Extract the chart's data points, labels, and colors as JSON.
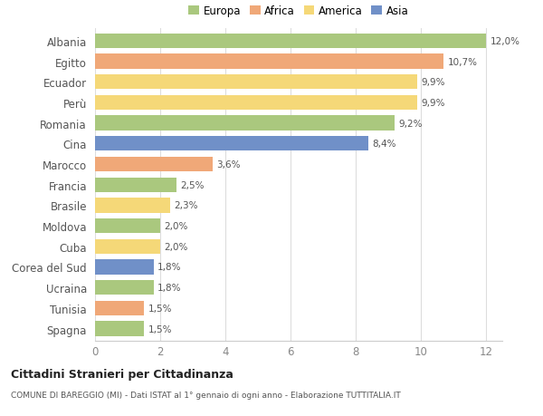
{
  "categories": [
    "Albania",
    "Egitto",
    "Ecuador",
    "Perù",
    "Romania",
    "Cina",
    "Marocco",
    "Francia",
    "Brasile",
    "Moldova",
    "Cuba",
    "Corea del Sud",
    "Ucraina",
    "Tunisia",
    "Spagna"
  ],
  "values": [
    12.0,
    10.7,
    9.9,
    9.9,
    9.2,
    8.4,
    3.6,
    2.5,
    2.3,
    2.0,
    2.0,
    1.8,
    1.8,
    1.5,
    1.5
  ],
  "labels": [
    "12,0%",
    "10,7%",
    "9,9%",
    "9,9%",
    "9,2%",
    "8,4%",
    "3,6%",
    "2,5%",
    "2,3%",
    "2,0%",
    "2,0%",
    "1,8%",
    "1,8%",
    "1,5%",
    "1,5%"
  ],
  "continents": [
    "Europa",
    "Africa",
    "America",
    "America",
    "Europa",
    "Asia",
    "Africa",
    "Europa",
    "America",
    "Europa",
    "America",
    "Asia",
    "Europa",
    "Africa",
    "Europa"
  ],
  "colors": {
    "Europa": "#aac87e",
    "Africa": "#f0a878",
    "America": "#f5d878",
    "Asia": "#7090c8"
  },
  "legend_order": [
    "Europa",
    "Africa",
    "America",
    "Asia"
  ],
  "title": "Cittadini Stranieri per Cittadinanza",
  "subtitle": "COMUNE DI BAREGGIO (MI) - Dati ISTAT al 1° gennaio di ogni anno - Elaborazione TUTTITALIA.IT",
  "xlim": [
    0,
    12.5
  ],
  "xticks": [
    0,
    2,
    4,
    6,
    8,
    10,
    12
  ],
  "background_color": "#ffffff"
}
